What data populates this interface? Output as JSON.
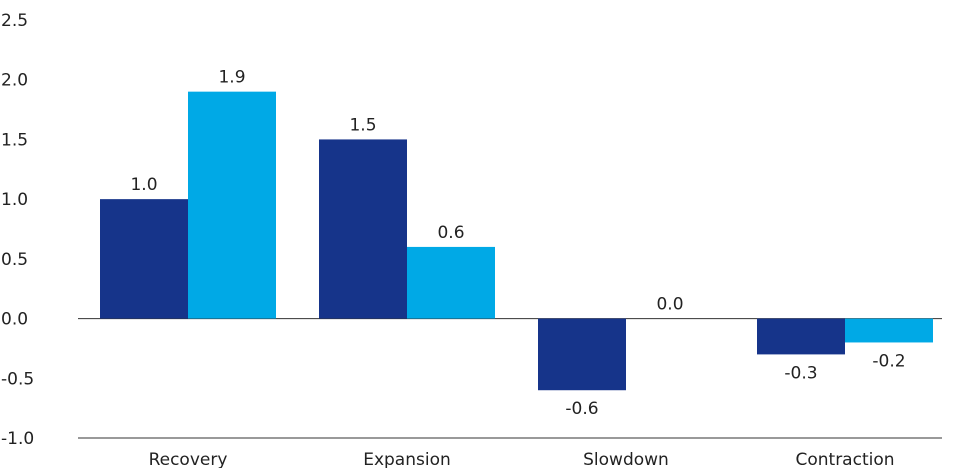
{
  "chart_data": {
    "type": "bar",
    "categories": [
      "Recovery",
      "Expansion",
      "Slowdown",
      "Contraction"
    ],
    "series": [
      {
        "values": [
          1.0,
          1.5,
          -0.6,
          -0.3
        ],
        "labels": [
          "1.0",
          "1.5",
          "-0.6",
          "-0.3"
        ],
        "color": "#16348a"
      },
      {
        "values": [
          1.9,
          0.6,
          0.0,
          -0.2
        ],
        "labels": [
          "1.9",
          "0.6",
          "0.0",
          "-0.2"
        ],
        "color": "#00a9e6"
      }
    ],
    "yticks": [
      "2.5",
      "2.0",
      "1.5",
      "1.0",
      "0.5",
      "0.0",
      "-0.5",
      "-1.0"
    ],
    "ylim": [
      -1.0,
      2.5
    ],
    "title": "",
    "xlabel": "",
    "ylabel": "",
    "grid": false,
    "legend": "none"
  }
}
